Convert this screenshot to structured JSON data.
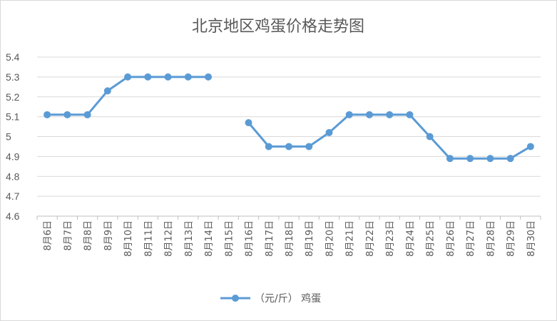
{
  "chart_data": {
    "type": "line",
    "title": "北京地区鸡蛋价格走势图",
    "xlabel": "",
    "ylabel": "",
    "ylim": [
      4.6,
      5.4
    ],
    "yticks": [
      "4.6",
      "4.7",
      "4.8",
      "4.9",
      "5",
      "5.1",
      "5.2",
      "5.3",
      "5.4"
    ],
    "grid": true,
    "legend_position": "bottom",
    "categories": [
      "8月6日",
      "8月7日",
      "8月8日",
      "8月9日",
      "8月10日",
      "8月11日",
      "8月12日",
      "8月13日",
      "8月14日",
      "8月15日",
      "8月16日",
      "8月17日",
      "8月18日",
      "8月19日",
      "8月20日",
      "8月21日",
      "8月22日",
      "8月23日",
      "8月24日",
      "8月25日",
      "8月26日",
      "8月27日",
      "8月28日",
      "8月29日",
      "8月30日"
    ],
    "series": [
      {
        "name": "（元/斤） 鸡蛋",
        "color": "#5b9bd5",
        "values": [
          5.11,
          5.11,
          5.11,
          5.23,
          5.3,
          5.3,
          5.3,
          5.3,
          5.3,
          null,
          5.07,
          4.95,
          4.95,
          4.95,
          5.02,
          5.11,
          5.11,
          5.11,
          5.11,
          5.0,
          4.89,
          4.89,
          4.89,
          4.89,
          4.95
        ]
      }
    ]
  }
}
